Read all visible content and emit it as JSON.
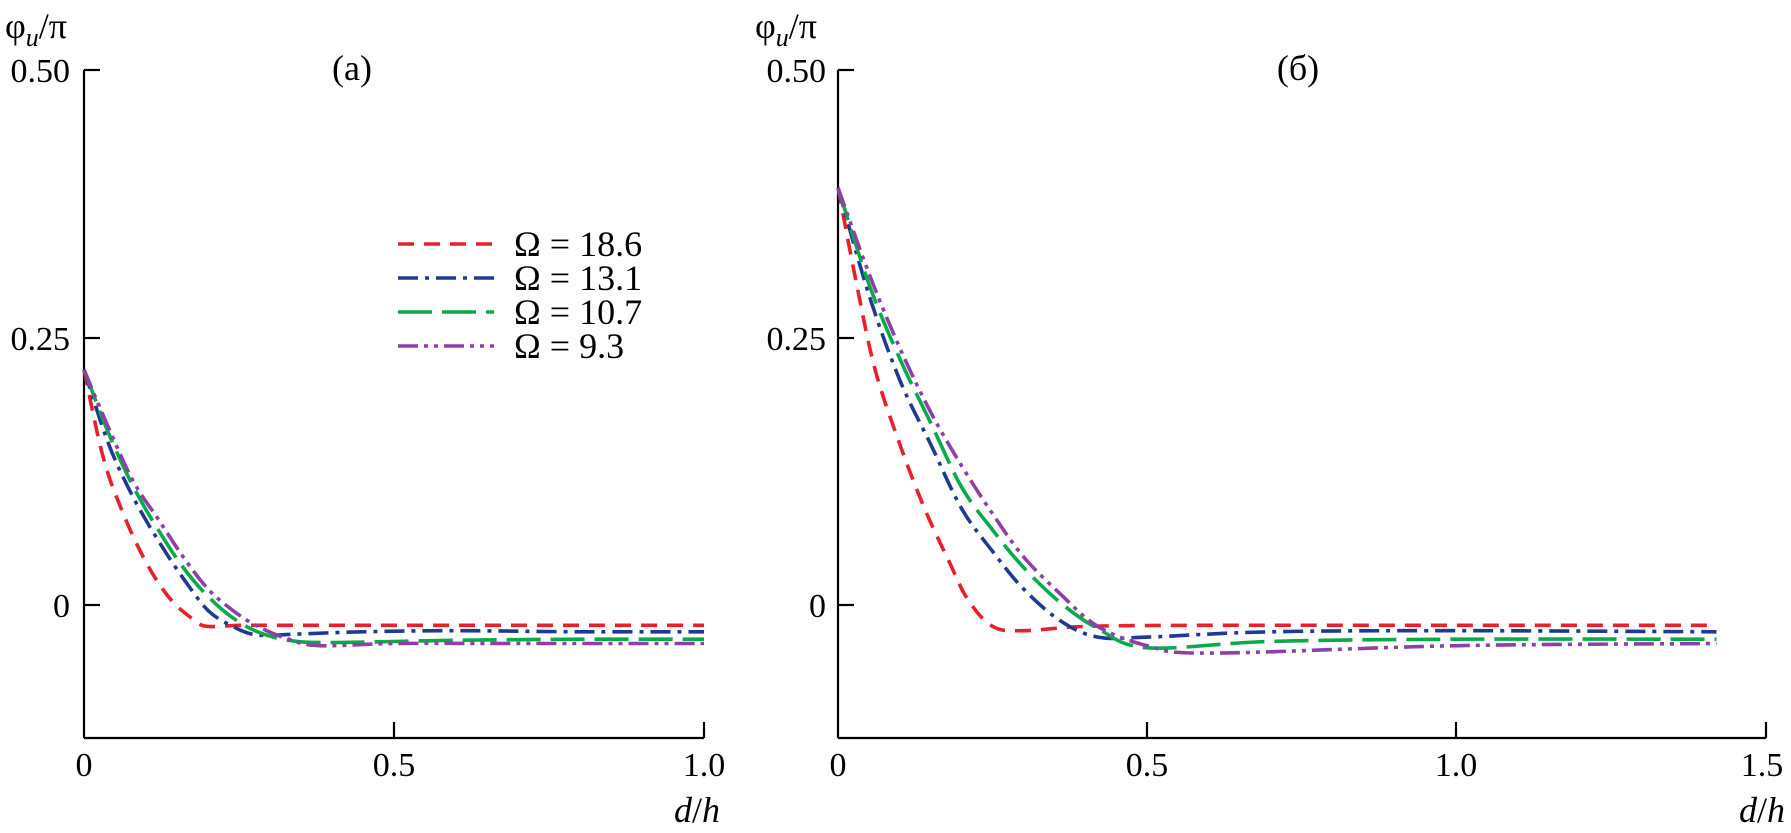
{
  "figure": {
    "y_axis_symbol": "φ",
    "y_axis_subscript": "u",
    "y_axis_rest": "/π",
    "x_axis_italic_1": "d",
    "x_axis_slash": "/",
    "x_axis_italic_2": "h"
  },
  "legend": [
    {
      "symbol": "Ω",
      "text": " = 18.6"
    },
    {
      "symbol": "Ω",
      "text": " = 13.1"
    },
    {
      "symbol": "Ω",
      "text": " = 10.7"
    },
    {
      "symbol": "Ω",
      "text": " = 9.3"
    }
  ],
  "chart_data": [
    {
      "type": "line",
      "panel_label": "(a)",
      "xlabel": "d/h",
      "ylabel": "φu/π",
      "xlim": [
        0,
        1.0
      ],
      "ylim": [
        -0.125,
        0.5
      ],
      "xticks": [
        "0",
        "0.5",
        "1.0"
      ],
      "xtick_values": [
        0,
        0.5,
        1.0
      ],
      "yticks": [
        "0",
        "0.25",
        "0.50"
      ],
      "ytick_values": [
        0,
        0.25,
        0.5
      ],
      "grid": false,
      "legend_position": "upper-middle",
      "series": [
        {
          "name": "Ω = 18.6",
          "color": "#e8202a",
          "dash": "16 10",
          "x": [
            0,
            0.03,
            0.06,
            0.1,
            0.14,
            0.18,
            0.2,
            0.25,
            0.3,
            0.4,
            0.6,
            0.8,
            1.0
          ],
          "y": [
            0.22,
            0.14,
            0.09,
            0.04,
            0.005,
            -0.015,
            -0.02,
            -0.019,
            -0.019,
            -0.019,
            -0.019,
            -0.019,
            -0.019
          ]
        },
        {
          "name": "Ω = 13.1",
          "color": "#1f3a93",
          "dash": "20 7 4 7",
          "x": [
            0,
            0.04,
            0.08,
            0.12,
            0.16,
            0.2,
            0.24,
            0.28,
            0.35,
            0.45,
            0.6,
            0.8,
            1.0
          ],
          "y": [
            0.22,
            0.15,
            0.1,
            0.06,
            0.025,
            -0.005,
            -0.02,
            -0.028,
            -0.027,
            -0.025,
            -0.024,
            -0.025,
            -0.025
          ]
        },
        {
          "name": "Ω = 10.7",
          "color": "#0aaa4a",
          "dash": "34 10",
          "x": [
            0,
            0.04,
            0.08,
            0.12,
            0.16,
            0.2,
            0.24,
            0.28,
            0.33,
            0.4,
            0.6,
            0.8,
            1.0
          ],
          "y": [
            0.22,
            0.16,
            0.11,
            0.07,
            0.035,
            0.008,
            -0.012,
            -0.025,
            -0.033,
            -0.035,
            -0.033,
            -0.032,
            -0.032
          ]
        },
        {
          "name": "Ω = 9.3",
          "color": "#8e3fa8",
          "dash": "20 6 4 6 4 6",
          "x": [
            0,
            0.04,
            0.08,
            0.12,
            0.16,
            0.2,
            0.24,
            0.28,
            0.33,
            0.38,
            0.5,
            0.7,
            1.0
          ],
          "y": [
            0.22,
            0.165,
            0.115,
            0.08,
            0.045,
            0.015,
            -0.005,
            -0.02,
            -0.032,
            -0.038,
            -0.036,
            -0.036,
            -0.036
          ]
        }
      ]
    },
    {
      "type": "line",
      "panel_label": "(б)",
      "xlabel": "d/h",
      "ylabel": "φu/π",
      "xlim": [
        0,
        1.5
      ],
      "ylim": [
        -0.125,
        0.5
      ],
      "xticks": [
        "0",
        "0.5",
        "1.0",
        "1.5"
      ],
      "xtick_values": [
        0,
        0.5,
        1.0,
        1.5
      ],
      "yticks": [
        "0",
        "0.25",
        "0.50"
      ],
      "ytick_values": [
        0,
        0.25,
        0.5
      ],
      "grid": false,
      "series": [
        {
          "name": "Ω = 18.6",
          "color": "#e8202a",
          "dash": "16 10",
          "x": [
            0,
            0.03,
            0.06,
            0.1,
            0.14,
            0.18,
            0.21,
            0.25,
            0.3,
            0.4,
            0.6,
            1.0,
            1.42
          ],
          "y": [
            0.39,
            0.3,
            0.22,
            0.15,
            0.09,
            0.04,
            0.005,
            -0.02,
            -0.024,
            -0.02,
            -0.019,
            -0.019,
            -0.019
          ]
        },
        {
          "name": "Ω = 13.1",
          "color": "#1f3a93",
          "dash": "20 7 4 7",
          "x": [
            0,
            0.05,
            0.1,
            0.15,
            0.2,
            0.25,
            0.3,
            0.36,
            0.42,
            0.5,
            0.7,
            1.0,
            1.42
          ],
          "y": [
            0.39,
            0.29,
            0.21,
            0.15,
            0.09,
            0.05,
            0.015,
            -0.015,
            -0.03,
            -0.03,
            -0.025,
            -0.024,
            -0.025
          ]
        },
        {
          "name": "Ω = 10.7",
          "color": "#0aaa4a",
          "dash": "34 10",
          "x": [
            0,
            0.05,
            0.1,
            0.15,
            0.2,
            0.25,
            0.3,
            0.36,
            0.42,
            0.5,
            0.7,
            1.0,
            1.42
          ],
          "y": [
            0.39,
            0.3,
            0.23,
            0.17,
            0.11,
            0.07,
            0.035,
            0.002,
            -0.022,
            -0.04,
            -0.034,
            -0.032,
            -0.032
          ]
        },
        {
          "name": "Ω = 9.3",
          "color": "#8e3fa8",
          "dash": "20 6 4 6 4 6",
          "x": [
            0,
            0.05,
            0.1,
            0.15,
            0.2,
            0.25,
            0.3,
            0.36,
            0.42,
            0.5,
            0.6,
            1.0,
            1.42
          ],
          "y": [
            0.39,
            0.31,
            0.24,
            0.18,
            0.13,
            0.085,
            0.045,
            0.01,
            -0.02,
            -0.038,
            -0.045,
            -0.038,
            -0.036
          ]
        }
      ]
    }
  ]
}
